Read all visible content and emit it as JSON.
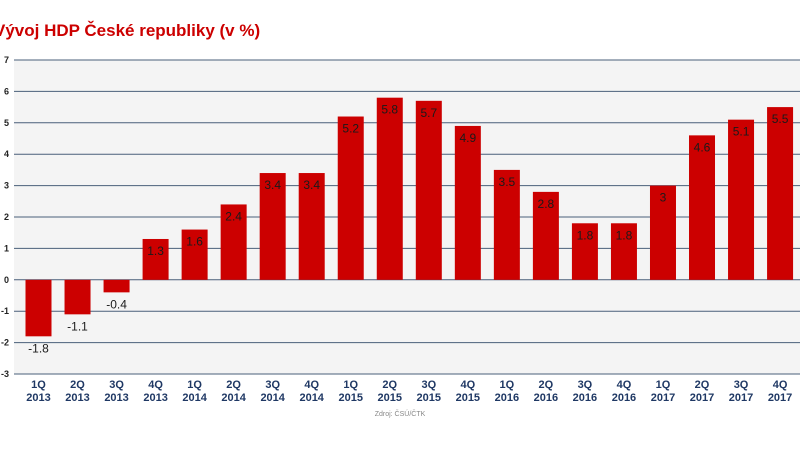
{
  "chart_data": {
    "type": "bar",
    "title": "Vývoj HDP České republiky (v %)",
    "source": "Zdroj: ČSÚ/ČTK",
    "categories": [
      [
        "1Q",
        "2013"
      ],
      [
        "2Q",
        "2013"
      ],
      [
        "3Q",
        "2013"
      ],
      [
        "4Q",
        "2013"
      ],
      [
        "1Q",
        "2014"
      ],
      [
        "2Q",
        "2014"
      ],
      [
        "3Q",
        "2014"
      ],
      [
        "4Q",
        "2014"
      ],
      [
        "1Q",
        "2015"
      ],
      [
        "2Q",
        "2015"
      ],
      [
        "3Q",
        "2015"
      ],
      [
        "4Q",
        "2015"
      ],
      [
        "1Q",
        "2016"
      ],
      [
        "2Q",
        "2016"
      ],
      [
        "3Q",
        "2016"
      ],
      [
        "4Q",
        "2016"
      ],
      [
        "1Q",
        "2017"
      ],
      [
        "2Q",
        "2017"
      ],
      [
        "3Q",
        "2017"
      ],
      [
        "4Q",
        "2017"
      ]
    ],
    "values": [
      -1.8,
      -1.1,
      -0.4,
      1.3,
      1.6,
      2.4,
      3.4,
      3.4,
      5.2,
      5.8,
      5.7,
      4.9,
      3.5,
      2.8,
      1.8,
      1.8,
      3.0,
      4.6,
      5.1,
      5.5
    ],
    "value_labels": [
      "-1.8",
      "-1.1",
      "-0.4",
      "1.3",
      "1.6",
      "2.4",
      "3.4",
      "3.4",
      "5.2",
      "5.8",
      "5.7",
      "4.9",
      "3.5",
      "2.8",
      "1.8",
      "1.8",
      "3",
      "4.6",
      "5.1",
      "5.5"
    ],
    "yticks": [
      "-3",
      "-2",
      "-1",
      "0",
      "1",
      "2",
      "3",
      "4",
      "5",
      "6",
      "7"
    ],
    "ylim": [
      -3,
      7
    ],
    "grid": true,
    "xlabel": "",
    "ylabel": "",
    "colors": {
      "bar": "#cc0000",
      "title": "#cc0000",
      "grid": "#4a5f7a",
      "plot_bg": "#f4f4f4",
      "x_label": "#1f3864"
    }
  }
}
